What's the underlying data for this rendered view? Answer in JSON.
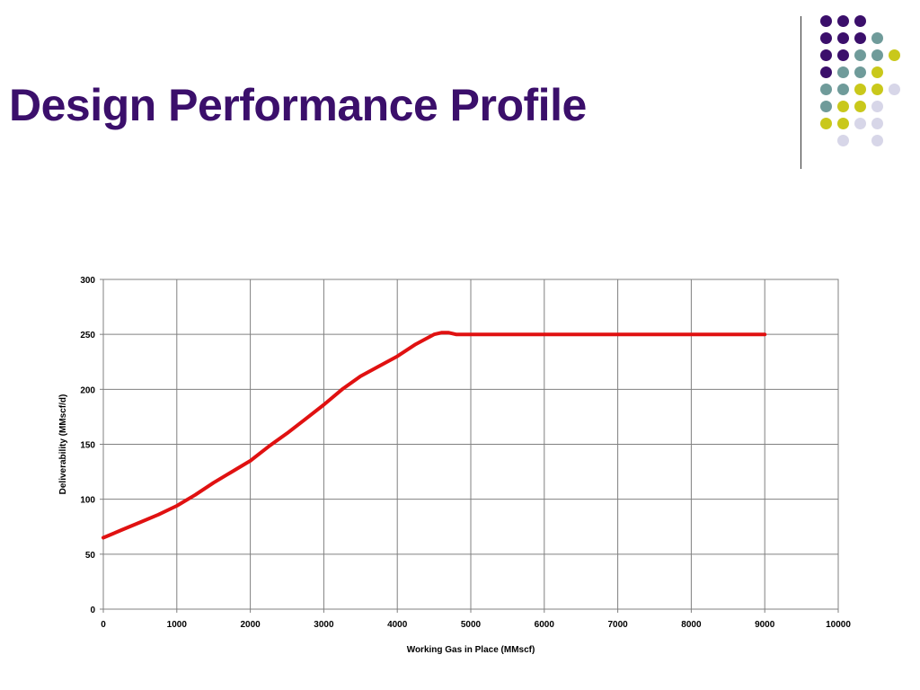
{
  "slide": {
    "title": "Design Performance Profile"
  },
  "colors": {
    "title": "#3b0f6b",
    "purple": "#3b0f6b",
    "teal": "#6f9b9a",
    "yellow": "#c9c81b",
    "lavender": "#d7d6e8",
    "line": "#e01111",
    "grid": "#808080"
  },
  "decoration": {
    "dot_rows": [
      [
        "purple",
        "purple",
        "purple",
        null,
        null
      ],
      [
        "purple",
        "purple",
        "purple",
        "teal",
        null
      ],
      [
        "purple",
        "purple",
        "teal",
        "teal",
        "yellow"
      ],
      [
        "purple",
        "teal",
        "teal",
        "yellow",
        null
      ],
      [
        "teal",
        "teal",
        "yellow",
        "yellow",
        "lavender"
      ],
      [
        "teal",
        "yellow",
        "yellow",
        "lavender",
        null
      ],
      [
        "yellow",
        "yellow",
        "lavender",
        "lavender",
        null
      ],
      [
        null,
        "lavender",
        null,
        "lavender",
        null
      ]
    ]
  },
  "chart_data": {
    "type": "line",
    "title": "",
    "xlabel": "Working Gas in Place (MMscf)",
    "ylabel": "Deliverability (MMscf/d)",
    "xlim": [
      0,
      10000
    ],
    "ylim": [
      0,
      300
    ],
    "xticks": [
      0,
      1000,
      2000,
      3000,
      4000,
      5000,
      6000,
      7000,
      8000,
      9000,
      10000
    ],
    "yticks": [
      0,
      50,
      100,
      150,
      200,
      250,
      300
    ],
    "grid": true,
    "legend": "none",
    "series": [
      {
        "x": [
          0,
          250,
          500,
          750,
          1000,
          1250,
          1500,
          1750,
          2000,
          2250,
          2500,
          2750,
          3000,
          3250,
          3500,
          3750,
          4000,
          4250,
          4500,
          4600,
          4700,
          4800,
          5000,
          6000,
          7000,
          8000,
          9000
        ],
        "y": [
          65,
          72,
          79,
          86,
          94,
          104,
          115,
          125,
          135,
          148,
          160,
          173,
          186,
          200,
          212,
          221,
          230,
          241,
          250,
          251.5,
          251.5,
          250,
          250,
          250,
          250,
          250,
          250
        ]
      }
    ]
  }
}
